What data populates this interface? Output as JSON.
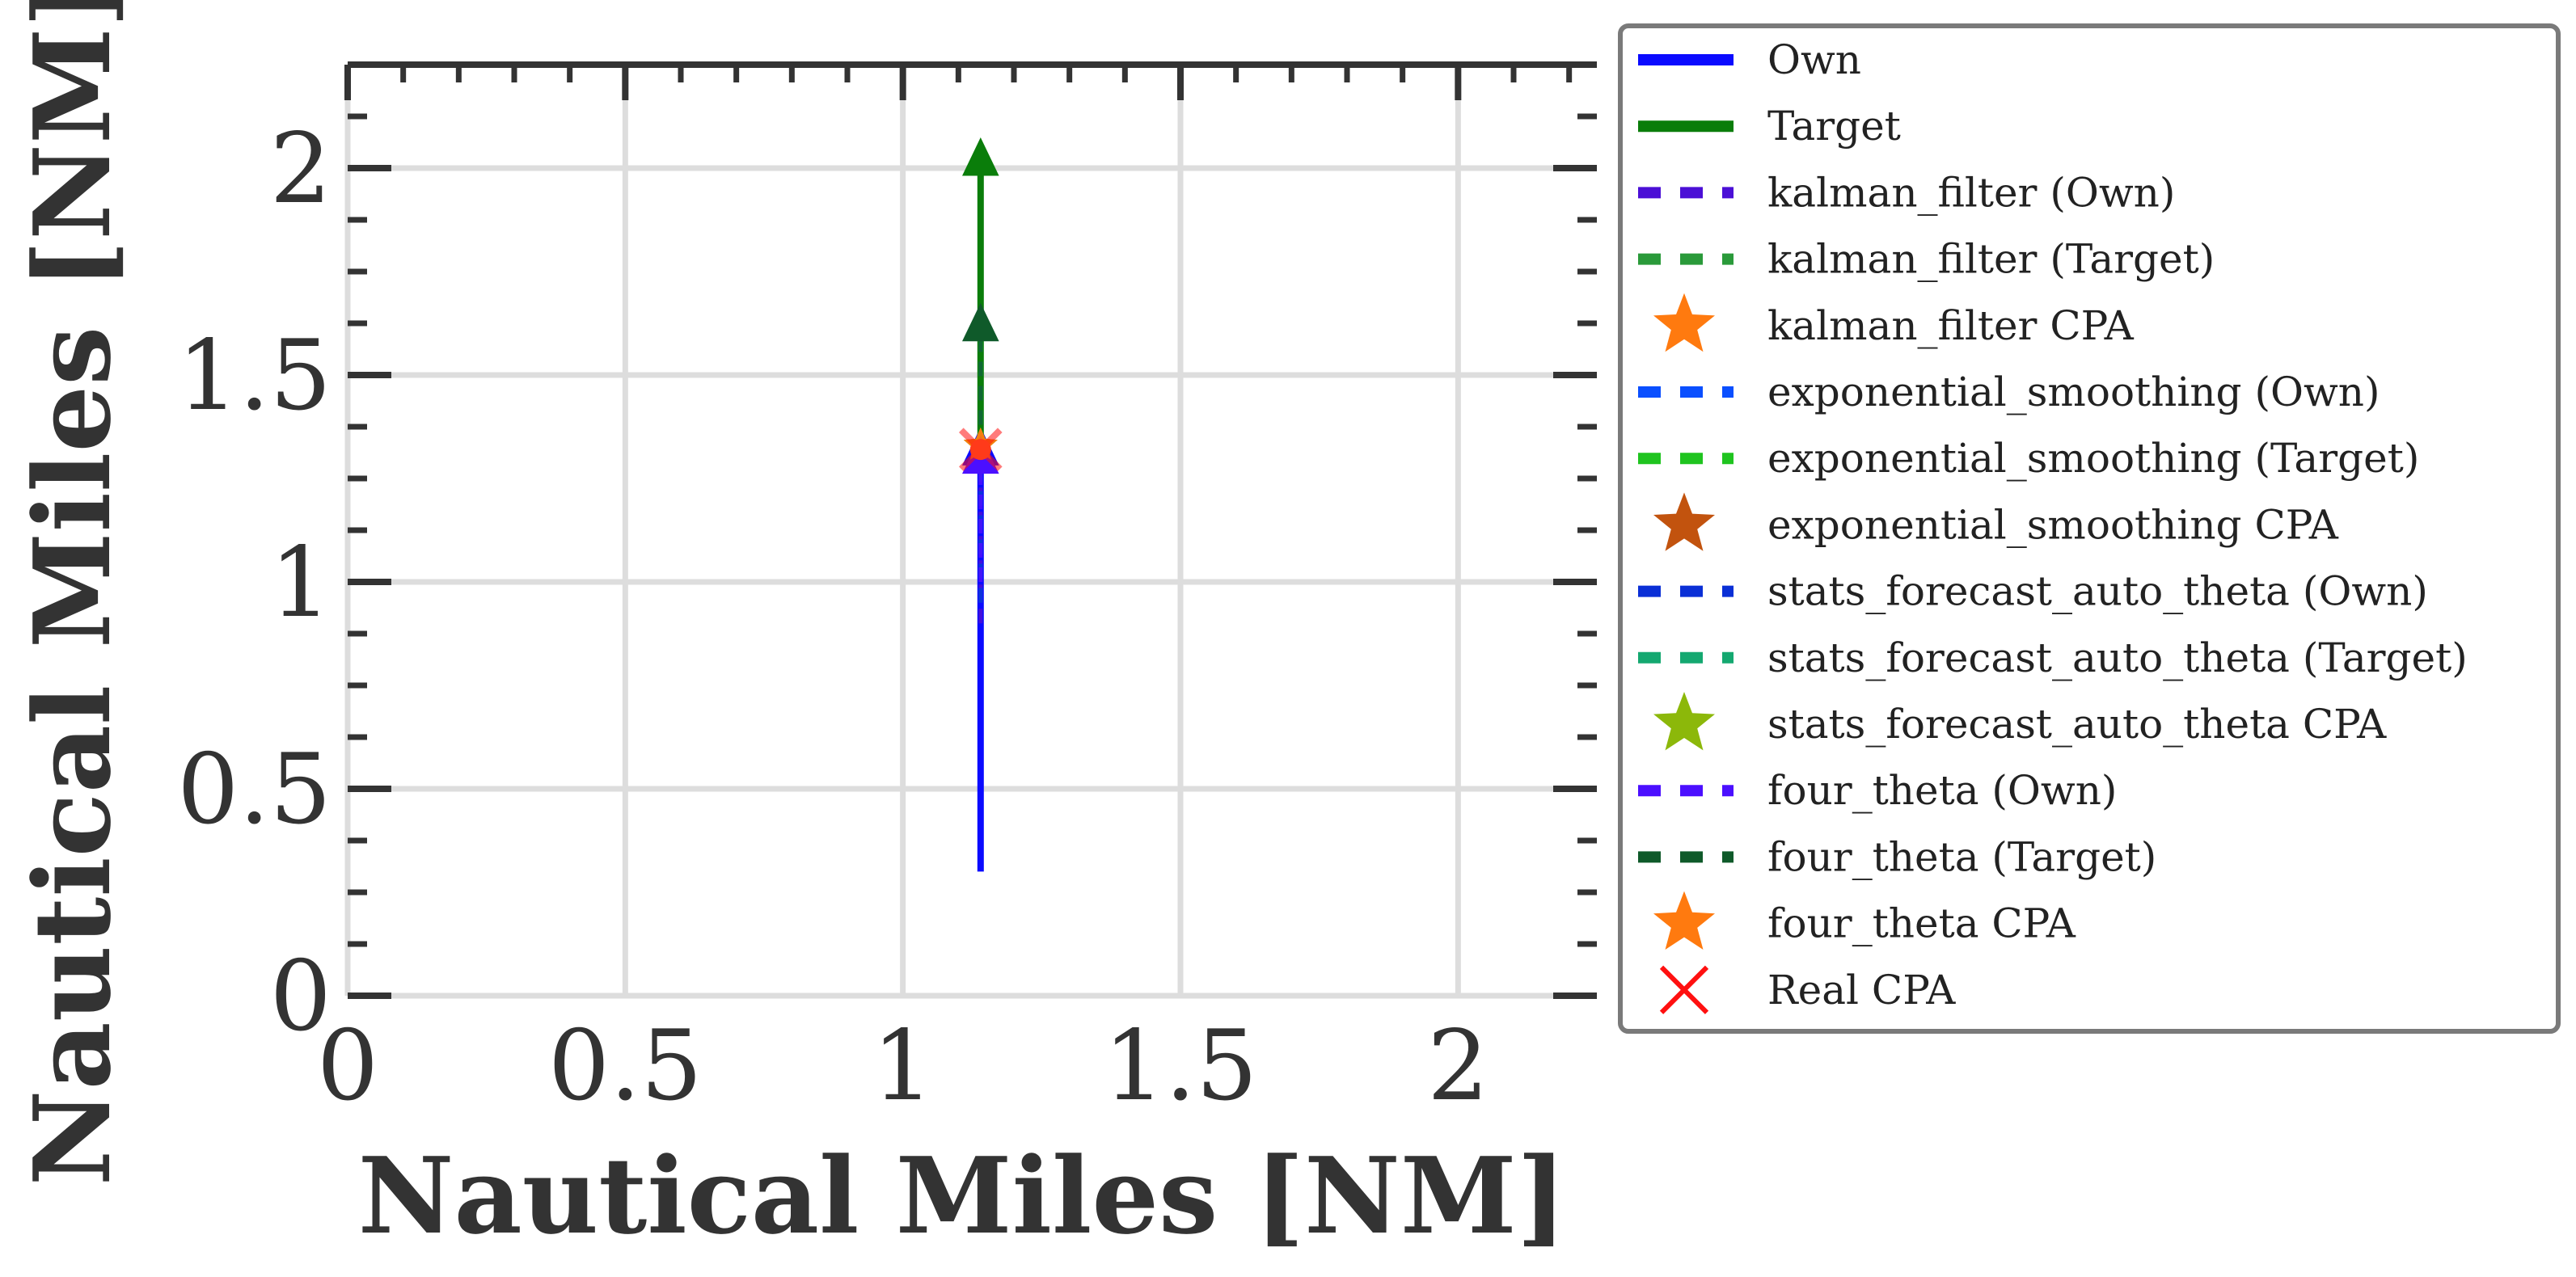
{
  "chart_data": {
    "type": "line",
    "title": "",
    "xlabel": "Nautical Miles [NM]",
    "ylabel": "Nautical Miles [NM]",
    "xlim": [
      0,
      2.25
    ],
    "ylim": [
      0,
      2.25
    ],
    "xticks": [
      0,
      0.5,
      1,
      1.5,
      2
    ],
    "yticks": [
      0,
      0.5,
      1,
      1.5,
      2
    ],
    "xtick_labels": [
      "0",
      "0.5",
      "1",
      "1.5",
      "2"
    ],
    "ytick_labels": [
      "0",
      "0.5",
      "1",
      "1.5",
      "2"
    ],
    "grid": true,
    "legend_placement": "outside-right",
    "series": [
      {
        "name": "Own",
        "style": "solid",
        "color": "#0a0aff",
        "x": [
          1.14,
          1.14
        ],
        "y": [
          0.3,
          1.3
        ],
        "arrow": true
      },
      {
        "name": "Target",
        "style": "solid",
        "color": "#0a7d0a",
        "x": [
          1.14,
          1.14
        ],
        "y": [
          1.35,
          2.0
        ],
        "arrow": true
      },
      {
        "name": "kalman_filter (Own)",
        "style": "dashed",
        "color": "#4b0fd6",
        "x": [
          1.14,
          1.14
        ],
        "y": [
          0.9,
          1.28
        ]
      },
      {
        "name": "kalman_filter (Target)",
        "style": "dashed",
        "color": "#2a9a3a",
        "x": [
          1.14,
          1.14
        ],
        "y": [
          1.38,
          1.65
        ]
      },
      {
        "name": "kalman_filter CPA",
        "marker": "star",
        "color": "#ff7a0f",
        "x": [
          1.14
        ],
        "y": [
          1.33
        ]
      },
      {
        "name": "exponential_smoothing (Own)",
        "style": "dashed",
        "color": "#0a4fff",
        "x": [
          1.14,
          1.14
        ],
        "y": [
          0.95,
          1.28
        ]
      },
      {
        "name": "exponential_smoothing (Target)",
        "style": "dashed",
        "color": "#1fc41f",
        "x": [
          1.14,
          1.14
        ],
        "y": [
          1.38,
          1.6
        ]
      },
      {
        "name": "exponential_smoothing CPA",
        "marker": "star",
        "color": "#c2530e",
        "x": [
          1.14
        ],
        "y": [
          1.33
        ]
      },
      {
        "name": "stats_forecast_auto_theta (Own)",
        "style": "dashed",
        "color": "#0a2fd6",
        "x": [
          1.14,
          1.14
        ],
        "y": [
          0.95,
          1.28
        ]
      },
      {
        "name": "stats_forecast_auto_theta (Target)",
        "style": "dashed",
        "color": "#14a870",
        "x": [
          1.14,
          1.14
        ],
        "y": [
          1.38,
          1.6
        ]
      },
      {
        "name": "stats_forecast_auto_theta CPA",
        "marker": "star",
        "color": "#8cb80a",
        "x": [
          1.14
        ],
        "y": [
          1.33
        ]
      },
      {
        "name": "four_theta (Own)",
        "style": "dashed",
        "color": "#4b0fff",
        "x": [
          1.14,
          1.14
        ],
        "y": [
          1.0,
          1.28
        ],
        "arrow": true
      },
      {
        "name": "four_theta (Target)",
        "style": "dashed",
        "color": "#0f5a2a",
        "x": [
          1.14,
          1.14
        ],
        "y": [
          1.38,
          1.6
        ],
        "arrow": true
      },
      {
        "name": "four_theta CPA",
        "marker": "star",
        "color": "#ff7a0f",
        "x": [
          1.14
        ],
        "y": [
          1.33
        ]
      },
      {
        "name": "Real CPA",
        "marker": "x",
        "color": "#ff1010",
        "x": [
          1.14
        ],
        "y": [
          1.32
        ]
      }
    ]
  }
}
